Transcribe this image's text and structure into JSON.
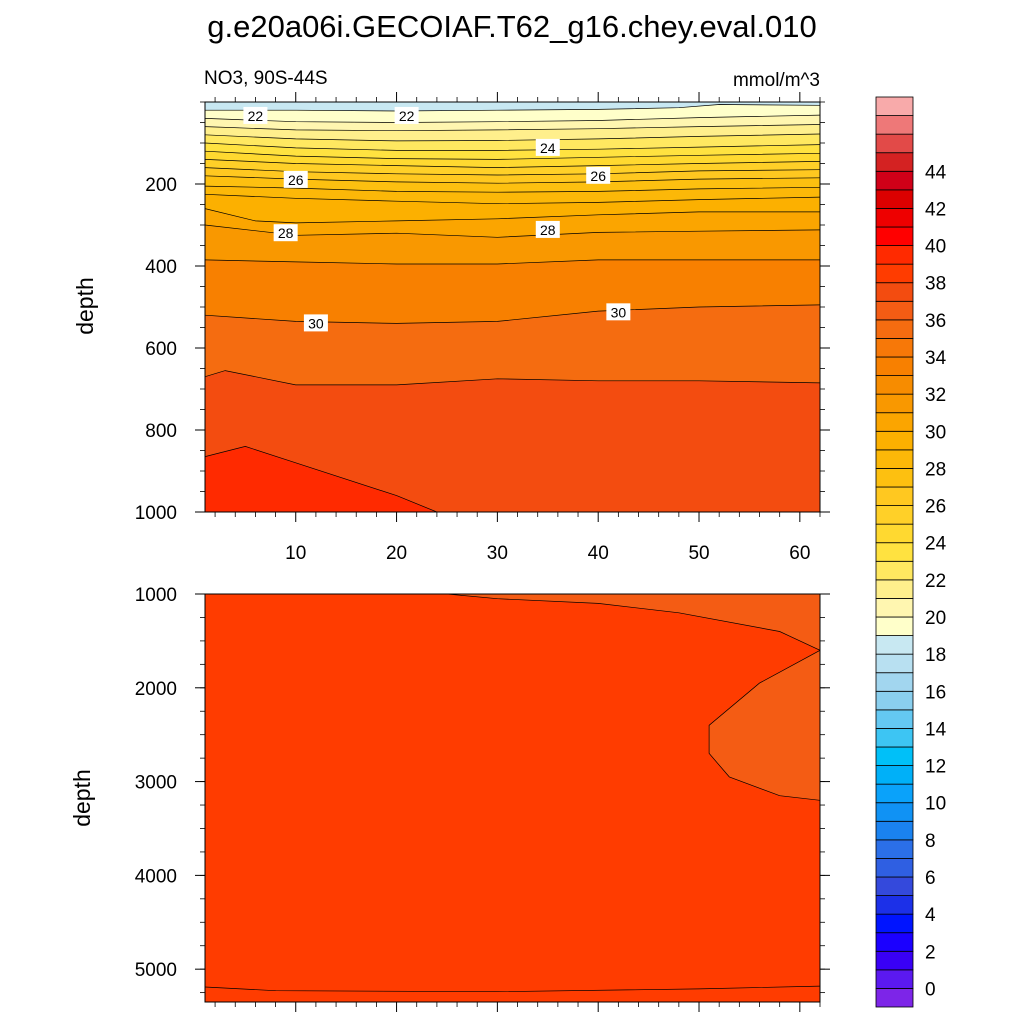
{
  "figure": {
    "title": "g.e20a06i.GECOIAF.T62_g16.chey.eval.010",
    "left_string": "NO3, 90S-44S",
    "right_string": "mmol/m^3"
  },
  "chart_data": [
    {
      "type": "contour",
      "panel": "upper",
      "ylabel": "depth",
      "xlim": [
        1,
        62
      ],
      "ylim": [
        1000,
        0
      ],
      "x_ticks": [
        10,
        20,
        30,
        40,
        50,
        60
      ],
      "y_ticks": [
        200,
        400,
        600,
        800,
        1000
      ],
      "contour_levels": [
        22,
        22.5,
        23,
        23.5,
        24,
        24.5,
        25,
        25.5,
        26,
        26.5,
        27,
        27.5,
        28,
        28.5,
        29,
        29.5,
        30,
        31,
        32
      ],
      "isolines": [
        {
          "level": 22,
          "points": [
            [
              1,
              20
            ],
            [
              10,
              20
            ],
            [
              20,
              22
            ],
            [
              30,
              20
            ],
            [
              40,
              18
            ],
            [
              48,
              14
            ],
            [
              52,
              6
            ],
            [
              62,
              8
            ]
          ]
        },
        {
          "level": 22.5,
          "points": [
            [
              1,
              40
            ],
            [
              10,
              48
            ],
            [
              20,
              50
            ],
            [
              30,
              48
            ],
            [
              40,
              45
            ],
            [
              50,
              38
            ],
            [
              62,
              32
            ]
          ]
        },
        {
          "level": 23,
          "points": [
            [
              1,
              60
            ],
            [
              10,
              68
            ],
            [
              20,
              70
            ],
            [
              30,
              68
            ],
            [
              40,
              65
            ],
            [
              50,
              60
            ],
            [
              62,
              55
            ]
          ]
        },
        {
          "level": 23.5,
          "points": [
            [
              1,
              80
            ],
            [
              10,
              90
            ],
            [
              20,
              95
            ],
            [
              30,
              94
            ],
            [
              40,
              90
            ],
            [
              50,
              84
            ],
            [
              62,
              78
            ]
          ]
        },
        {
          "level": 24,
          "points": [
            [
              1,
              100
            ],
            [
              10,
              112
            ],
            [
              20,
              118
            ],
            [
              30,
              118
            ],
            [
              40,
              115
            ],
            [
              50,
              110
            ],
            [
              62,
              104
            ]
          ]
        },
        {
          "level": 24.5,
          "points": [
            [
              1,
              120
            ],
            [
              10,
              132
            ],
            [
              20,
              138
            ],
            [
              30,
              140
            ],
            [
              40,
              135
            ],
            [
              50,
              130
            ],
            [
              62,
              125
            ]
          ]
        },
        {
          "level": 25,
          "points": [
            [
              1,
              140
            ],
            [
              10,
              150
            ],
            [
              20,
              155
            ],
            [
              30,
              160
            ],
            [
              40,
              155
            ],
            [
              50,
              150
            ],
            [
              62,
              145
            ]
          ]
        },
        {
          "level": 25.5,
          "points": [
            [
              1,
              160
            ],
            [
              10,
              170
            ],
            [
              20,
              175
            ],
            [
              30,
              178
            ],
            [
              40,
              175
            ],
            [
              50,
              168
            ],
            [
              62,
              165
            ]
          ]
        },
        {
          "level": 26,
          "points": [
            [
              1,
              180
            ],
            [
              10,
              188
            ],
            [
              20,
              195
            ],
            [
              30,
              198
            ],
            [
              40,
              195
            ],
            [
              50,
              188
            ],
            [
              62,
              185
            ]
          ]
        },
        {
          "level": 26.5,
          "points": [
            [
              1,
              205
            ],
            [
              10,
              210
            ],
            [
              20,
              218
            ],
            [
              30,
              220
            ],
            [
              40,
              218
            ],
            [
              50,
              212
            ],
            [
              62,
              208
            ]
          ]
        },
        {
          "level": 27,
          "points": [
            [
              1,
              225
            ],
            [
              10,
              235
            ],
            [
              20,
              242
            ],
            [
              30,
              248
            ],
            [
              40,
              245
            ],
            [
              50,
              238
            ],
            [
              62,
              232
            ]
          ]
        },
        {
          "level": 27.5,
          "points": [
            [
              1,
              260
            ],
            [
              6,
              290
            ],
            [
              10,
              295
            ],
            [
              20,
              290
            ],
            [
              30,
              285
            ],
            [
              40,
              275
            ],
            [
              50,
              268
            ],
            [
              62,
              268
            ]
          ]
        },
        {
          "level": 28,
          "points": [
            [
              1,
              300
            ],
            [
              10,
              325
            ],
            [
              20,
              320
            ],
            [
              30,
              330
            ],
            [
              40,
              318
            ],
            [
              50,
              315
            ],
            [
              62,
              312
            ]
          ]
        },
        {
          "level": 29,
          "points": [
            [
              1,
              385
            ],
            [
              10,
              390
            ],
            [
              20,
              395
            ],
            [
              30,
              395
            ],
            [
              40,
              385
            ],
            [
              50,
              385
            ],
            [
              62,
              385
            ]
          ]
        },
        {
          "level": 30,
          "points": [
            [
              1,
              520
            ],
            [
              10,
              535
            ],
            [
              20,
              540
            ],
            [
              30,
              535
            ],
            [
              40,
              510
            ],
            [
              50,
              500
            ],
            [
              62,
              495
            ]
          ]
        },
        {
          "level": 31,
          "points": [
            [
              1,
              670
            ],
            [
              3,
              655
            ],
            [
              10,
              690
            ],
            [
              20,
              690
            ],
            [
              30,
              675
            ],
            [
              40,
              680
            ],
            [
              50,
              680
            ],
            [
              62,
              685
            ]
          ]
        },
        {
          "level": 32,
          "points": [
            [
              1,
              865
            ],
            [
              5,
              840
            ],
            [
              10,
              880
            ],
            [
              20,
              960
            ],
            [
              24,
              1000
            ]
          ]
        }
      ],
      "labels": [
        {
          "text": "22",
          "x": 6,
          "y": 34
        },
        {
          "text": "22",
          "x": 21,
          "y": 34
        },
        {
          "text": "24",
          "x": 35,
          "y": 112
        },
        {
          "text": "26",
          "x": 10,
          "y": 190
        },
        {
          "text": "26",
          "x": 40,
          "y": 180
        },
        {
          "text": "28",
          "x": 9,
          "y": 320
        },
        {
          "text": "28",
          "x": 35,
          "y": 312
        },
        {
          "text": "30",
          "x": 12,
          "y": 540
        },
        {
          "text": "30",
          "x": 42,
          "y": 513
        }
      ]
    },
    {
      "type": "contour",
      "panel": "lower",
      "ylabel": "depth",
      "xlim": [
        1,
        62
      ],
      "ylim": [
        5350,
        1000
      ],
      "y_ticks": [
        1000,
        2000,
        3000,
        4000,
        5000
      ],
      "contour_levels": [
        31,
        32
      ],
      "isolines": [
        {
          "level": 32,
          "points": [
            [
              25,
              1000
            ],
            [
              30,
              1050
            ],
            [
              40,
              1100
            ],
            [
              48,
              1200
            ],
            [
              58,
              1400
            ],
            [
              62,
              1600
            ]
          ]
        },
        {
          "level": 32,
          "points": [
            [
              62,
              1600
            ],
            [
              56,
              1950
            ],
            [
              51,
              2400
            ],
            [
              51,
              2700
            ],
            [
              53,
              2950
            ],
            [
              58,
              3150
            ],
            [
              62,
              3200
            ]
          ]
        },
        {
          "level": 32,
          "points": [
            [
              1,
              5190
            ],
            [
              8,
              5230
            ],
            [
              30,
              5240
            ],
            [
              50,
              5210
            ],
            [
              62,
              5180
            ]
          ]
        }
      ]
    }
  ],
  "colorbar": {
    "labels": [
      "0",
      "2",
      "4",
      "6",
      "8",
      "10",
      "12",
      "14",
      "16",
      "18",
      "20",
      "22",
      "24",
      "26",
      "28",
      "30",
      "32",
      "34",
      "36",
      "38",
      "40",
      "42",
      "44"
    ],
    "colors": [
      "#7d25e8",
      "#5b19f0",
      "#3900f5",
      "#1b00ff",
      "#0014ff",
      "#1c30e8",
      "#3449dc",
      "#2f5fe2",
      "#2b6fe8",
      "#1a82f0",
      "#1092f4",
      "#0aa2fa",
      "#00b0f8",
      "#00c0f8",
      "#3dc5f3",
      "#64c8f2",
      "#8acfee",
      "#a2d6ef",
      "#b8e0f1",
      "#c8e8f2",
      "#ffffca",
      "#fff6b0",
      "#ffef8c",
      "#ffe860",
      "#ffe240",
      "#ffd930",
      "#ffd028",
      "#ffc820",
      "#fdc010",
      "#fcb808",
      "#fcb000",
      "#fba500",
      "#f99800",
      "#f78c00",
      "#f88000",
      "#f77808",
      "#f56c10",
      "#f45c14",
      "#f34c10",
      "#ff3c00",
      "#ff2a00",
      "#ff0000",
      "#ee0000",
      "#dc0000",
      "#d00018",
      "#d42222",
      "#e24a48",
      "#ee7878",
      "#f8aaaa"
    ]
  }
}
